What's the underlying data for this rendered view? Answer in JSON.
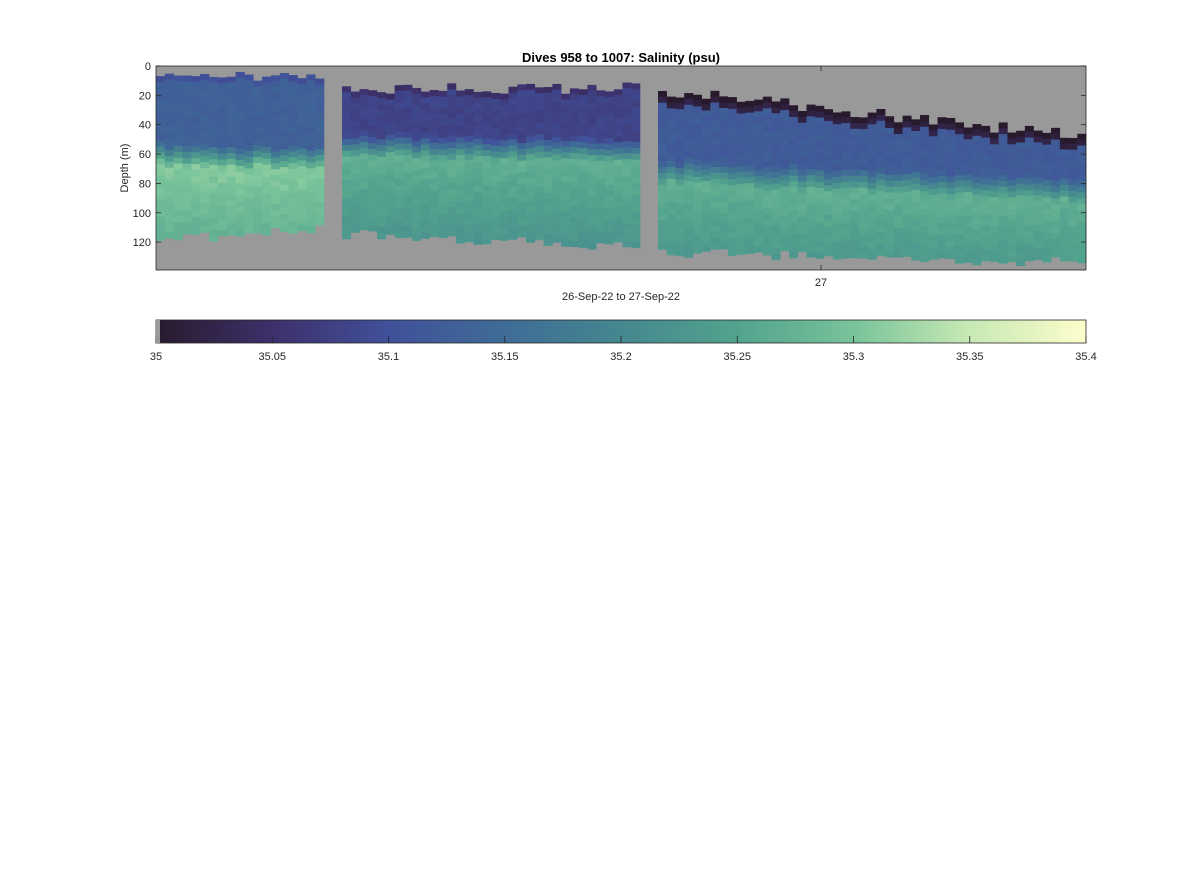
{
  "chart_data": {
    "type": "heatmap",
    "title": "Dives 958 to 1007: Salinity (psu)",
    "xlabel": "26-Sep-22 to 27-Sep-22",
    "ylabel": "Depth (m)",
    "x_tick_labels": [
      "27"
    ],
    "y_ticks": [
      0,
      20,
      40,
      60,
      80,
      100,
      120
    ],
    "y_tick_labels": [
      "0",
      "20",
      "40",
      "60",
      "80",
      "100",
      "120"
    ],
    "ylim": [
      0,
      139
    ],
    "y_reversed": true,
    "background_color": "#999999",
    "colormap": "deep (dark purple to pale yellow)",
    "colorbar": {
      "orientation": "horizontal",
      "clim": [
        35,
        35.4
      ],
      "ticks": [
        35,
        35.05,
        35.1,
        35.15,
        35.2,
        35.25,
        35.3,
        35.35,
        35.4
      ],
      "tick_labels": [
        "35",
        "35.05",
        "35.1",
        "35.15",
        "35.2",
        "35.25",
        "35.3",
        "35.35",
        "35.4"
      ],
      "colors": [
        "#281a2c",
        "#3d306a",
        "#40509a",
        "#3f6c96",
        "#45878f",
        "#52a38e",
        "#79c39a",
        "#c7e9b4",
        "#fdfecc"
      ]
    },
    "sections": [
      {
        "columns": 19,
        "surface_start": 7,
        "bottom_start": 117,
        "bottom_end": 110,
        "halocline_start": 58,
        "halocline_end": 62,
        "upper_salinity": 35.13,
        "lower_salinity": 35.29
      },
      {
        "columns": 34,
        "surface_start": 15,
        "bottom_start": 113,
        "bottom_end": 121,
        "halocline_start": 52,
        "halocline_end": 56,
        "upper_salinity": 35.08,
        "lower_salinity": 35.25
      },
      {
        "columns": 49,
        "surface_start": 17,
        "bottom_start": 125,
        "bottom_end": 132,
        "surface_end": 48,
        "halocline_start": 70,
        "halocline_end": 83,
        "upper_salinity": 35.12,
        "lower_salinity": 35.25
      }
    ]
  }
}
